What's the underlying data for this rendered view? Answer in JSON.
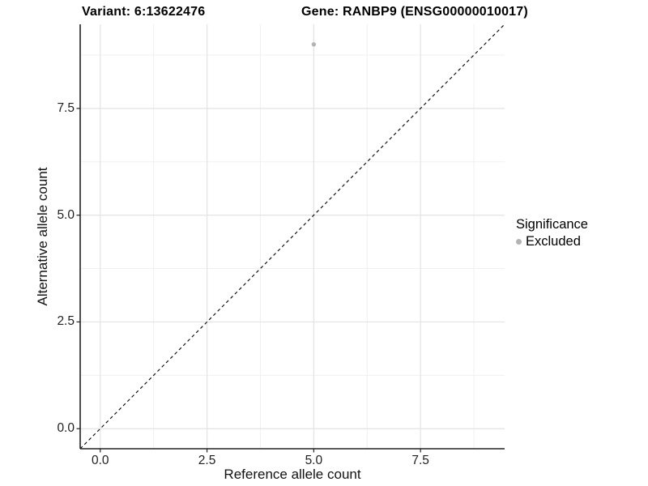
{
  "titles": {
    "variant": "Variant: 6:13622476",
    "gene": "Gene: RANBP9 (ENSG00000010017)"
  },
  "axes": {
    "x_label": "Reference allele count",
    "y_label": "Alternative allele count"
  },
  "legend": {
    "title": "Significance",
    "items": [
      {
        "label": "Excluded",
        "color": "#b3b3b3"
      }
    ]
  },
  "colors": {
    "background": "#ffffff",
    "axis_line": "#222222",
    "grid_major": "#e3e3e3",
    "grid_minor": "#f0f0f0",
    "identity_line": "#000000",
    "point": "#b3b3b3",
    "tick_text": "#1f1f1f"
  },
  "chart_data": {
    "type": "scatter",
    "title": "Variant: 6:13622476   Gene: RANBP9 (ENSG00000010017)",
    "xlabel": "Reference allele count",
    "ylabel": "Alternative allele count",
    "xlim": [
      -0.47,
      9.47
    ],
    "ylim": [
      -0.47,
      9.47
    ],
    "x_ticks": [
      0,
      2.5,
      5,
      7.5
    ],
    "y_ticks": [
      0,
      2.5,
      5,
      7.5
    ],
    "x_tick_labels": [
      "0.0",
      "2.5",
      "5.0",
      "7.5"
    ],
    "y_tick_labels": [
      "0.0",
      "2.5",
      "5.0",
      "7.5"
    ],
    "x_minor_ticks": [
      1.25,
      3.75,
      6.25,
      8.75
    ],
    "y_minor_ticks": [
      1.25,
      3.75,
      6.25,
      8.75
    ],
    "grid": true,
    "legend_position": "right",
    "legend_title": "Significance",
    "series": [
      {
        "name": "Excluded",
        "color": "#b3b3b3",
        "points": [
          {
            "x": 5,
            "y": 9
          }
        ]
      }
    ],
    "reference_line": {
      "type": "identity",
      "equation": "y = x",
      "style": "dashed",
      "color": "#000000"
    }
  }
}
